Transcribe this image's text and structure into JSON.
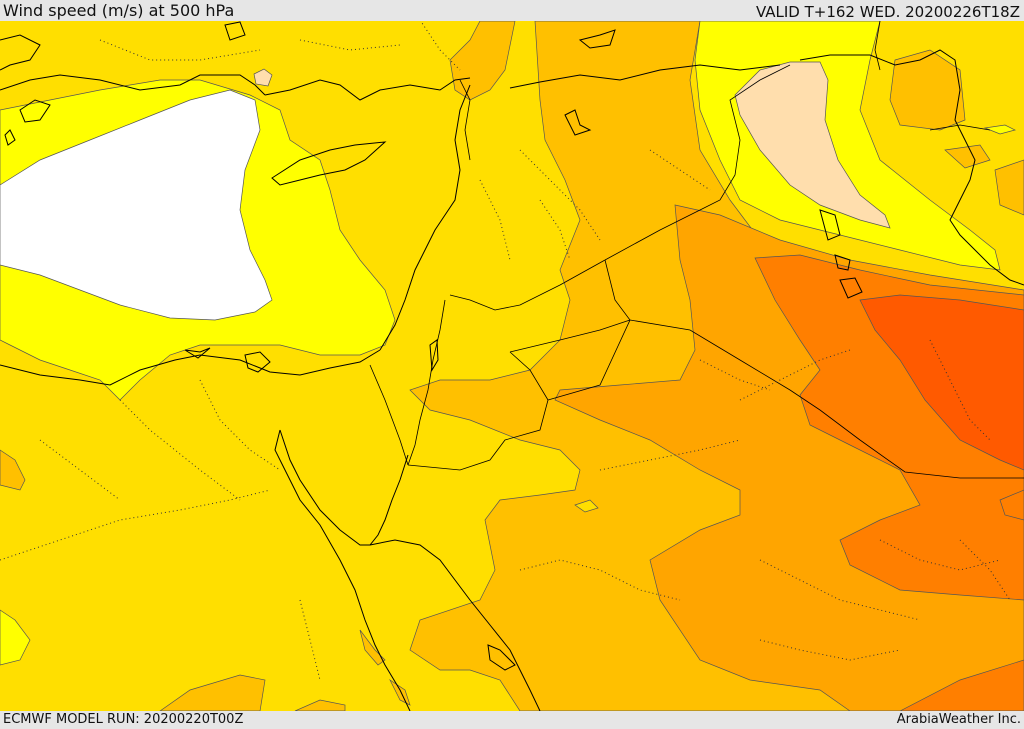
{
  "header": {
    "title": "Wind speed (m/s) at 500 hPa",
    "valid": "VALID T+162 WED. 20200226T18Z"
  },
  "footer": {
    "model_run": "ECMWF MODEL RUN: 20200220T00Z",
    "credit": "ArabiaWeather Inc."
  },
  "map": {
    "colors": {
      "base_gold": "#ffdf00",
      "yellow": "#ffff00",
      "white": "#ffffff",
      "light_orange": "#ffc000",
      "orange": "#ffa500",
      "dark_orange": "#ff7f00",
      "red_orange": "#ff5a00",
      "tan": "#ffdead",
      "outline": "#000000"
    }
  }
}
